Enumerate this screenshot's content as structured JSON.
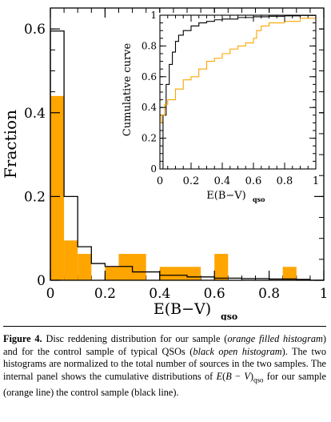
{
  "chart_data": [
    {
      "type": "bar",
      "xlabel": "E(B−V)",
      "xlabel_sub": "qso",
      "ylabel": "Fraction",
      "xlim": [
        0,
        1
      ],
      "ylim": [
        0,
        0.65
      ],
      "xticks": [
        "0",
        "0.2",
        "0.4",
        "0.6",
        "0.8",
        "1"
      ],
      "yticks": [
        "0",
        "0.2",
        "0.4",
        "0.6"
      ],
      "bin_width": 0.05,
      "series": [
        {
          "kind": "filled_histogram",
          "color": "#FFA500",
          "bins": [
            {
              "x0": 0.0,
              "x1": 0.05,
              "y": 0.44
            },
            {
              "x0": 0.05,
              "x1": 0.1,
              "y": 0.095
            },
            {
              "x0": 0.1,
              "x1": 0.15,
              "y": 0.063
            },
            {
              "x0": 0.15,
              "x1": 0.2,
              "y": 0.0
            },
            {
              "x0": 0.2,
              "x1": 0.25,
              "y": 0.032
            },
            {
              "x0": 0.25,
              "x1": 0.35,
              "y": 0.063
            },
            {
              "x0": 0.35,
              "x1": 0.4,
              "y": 0.0
            },
            {
              "x0": 0.4,
              "x1": 0.55,
              "y": 0.032
            },
            {
              "x0": 0.55,
              "x1": 0.6,
              "y": 0.0
            },
            {
              "x0": 0.6,
              "x1": 0.65,
              "y": 0.063
            },
            {
              "x0": 0.65,
              "x1": 0.85,
              "y": 0.0
            },
            {
              "x0": 0.85,
              "x1": 0.9,
              "y": 0.032
            }
          ]
        },
        {
          "kind": "open_histogram",
          "color": "#000000",
          "bins": [
            {
              "x0": 0.0,
              "x1": 0.05,
              "y": 0.595
            },
            {
              "x0": 0.05,
              "x1": 0.1,
              "y": 0.2
            },
            {
              "x0": 0.1,
              "x1": 0.15,
              "y": 0.08
            },
            {
              "x0": 0.15,
              "x1": 0.2,
              "y": 0.04
            },
            {
              "x0": 0.2,
              "x1": 0.3,
              "y": 0.033
            },
            {
              "x0": 0.3,
              "x1": 0.4,
              "y": 0.02
            },
            {
              "x0": 0.4,
              "x1": 0.5,
              "y": 0.012
            },
            {
              "x0": 0.5,
              "x1": 0.6,
              "y": 0.008
            },
            {
              "x0": 0.6,
              "x1": 0.7,
              "y": 0.005
            },
            {
              "x0": 0.7,
              "x1": 0.8,
              "y": 0.004
            },
            {
              "x0": 0.8,
              "x1": 0.9,
              "y": 0.003
            },
            {
              "x0": 0.9,
              "x1": 0.95,
              "y": 0.002
            },
            {
              "x0": 0.95,
              "x1": 1.0,
              "y": 0.0
            }
          ]
        }
      ]
    },
    {
      "type": "line",
      "xlabel": "E(B−V)",
      "xlabel_sub": "qso",
      "ylabel": "Cumulative curve",
      "xlim": [
        0,
        1
      ],
      "ylim": [
        0,
        1
      ],
      "xticks": [
        "0",
        "0.2",
        "0.4",
        "0.6",
        "0.8",
        "1"
      ],
      "yticks": [
        "0",
        "0.2",
        "0.4",
        "0.6",
        "0.8",
        "1"
      ],
      "series": [
        {
          "color": "#000000",
          "x": [
            0.0,
            0.02,
            0.04,
            0.06,
            0.08,
            0.1,
            0.12,
            0.15,
            0.2,
            0.25,
            0.3,
            0.35,
            0.4,
            0.5,
            0.6,
            0.7,
            0.8,
            0.9,
            1.0
          ],
          "y": [
            0.0,
            0.35,
            0.55,
            0.68,
            0.76,
            0.83,
            0.87,
            0.9,
            0.93,
            0.95,
            0.96,
            0.97,
            0.975,
            0.985,
            0.99,
            0.993,
            0.996,
            0.998,
            1.0
          ]
        },
        {
          "color": "#FFA500",
          "x": [
            0.0,
            0.01,
            0.03,
            0.05,
            0.1,
            0.15,
            0.2,
            0.25,
            0.3,
            0.35,
            0.4,
            0.45,
            0.5,
            0.55,
            0.6,
            0.62,
            0.65,
            0.7,
            0.8,
            0.9,
            1.0
          ],
          "y": [
            0.3,
            0.35,
            0.42,
            0.45,
            0.52,
            0.58,
            0.6,
            0.65,
            0.7,
            0.72,
            0.75,
            0.78,
            0.8,
            0.82,
            0.85,
            0.9,
            0.93,
            0.95,
            0.96,
            0.98,
            1.0
          ]
        }
      ]
    }
  ],
  "caption": {
    "label": "Figure 4.",
    "segments": [
      {
        "t": " Disc reddening distribution for our sample (",
        "i": false
      },
      {
        "t": "orange filled histogram",
        "i": true
      },
      {
        "t": ") and for the control sample of typical QSOs (",
        "i": false
      },
      {
        "t": "black open histogram",
        "i": true
      },
      {
        "t": "). The two histograms are normalized to the total number of sources in the two samples. The internal panel shows the cumulative distributions of ",
        "i": false
      },
      {
        "t": "E",
        "i": true
      },
      {
        "t": "(",
        "i": false
      },
      {
        "t": "B",
        "i": true
      },
      {
        "t": " − ",
        "i": false
      },
      {
        "t": "V",
        "i": true
      },
      {
        "t": ")",
        "i": false
      },
      {
        "t": "qso",
        "i": false,
        "sub": true
      },
      {
        "t": " for our sample (orange line) the control sample (black line).",
        "i": false
      }
    ]
  }
}
